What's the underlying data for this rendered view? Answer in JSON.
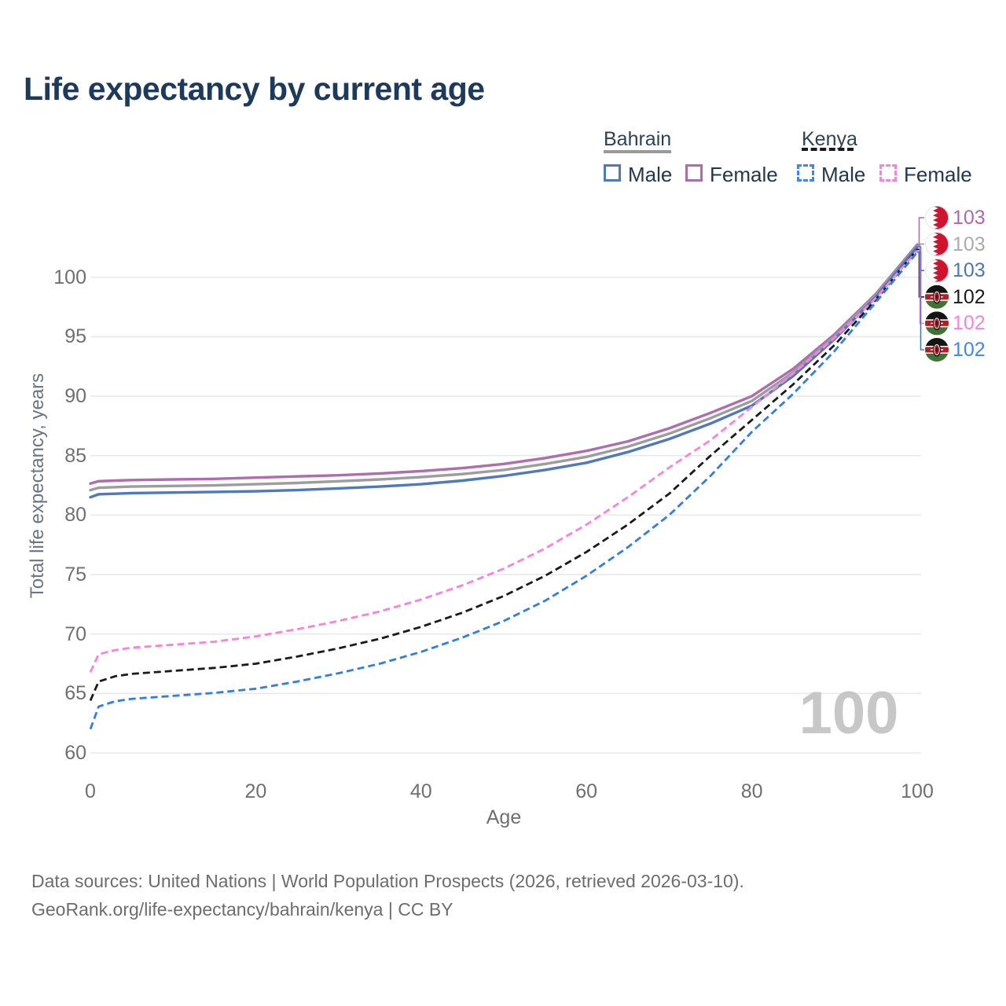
{
  "title": "Life expectancy by current age",
  "legend": {
    "groups": [
      {
        "label": "Bahrain",
        "line_style": "solid",
        "underline_color": "#999999",
        "items": [
          {
            "label": "Male",
            "color": "#4e79bb",
            "dashed": false
          },
          {
            "label": "Female",
            "color": "#b06dad",
            "dashed": false
          }
        ]
      },
      {
        "label": "Kenya",
        "line_style": "dashed",
        "underline_color": "#1a1a1a",
        "items": [
          {
            "label": "Male",
            "color": "#3f86f0",
            "dashed": true
          },
          {
            "label": "Female",
            "color": "#fb80e0",
            "dashed": true
          }
        ]
      }
    ]
  },
  "chart_data": {
    "type": "line",
    "title": "Life expectancy by current age",
    "xlabel": "Age",
    "ylabel": "Total life expectancy, years",
    "xlim": [
      0,
      100
    ],
    "ylim": [
      60,
      100
    ],
    "x_ticks": [
      0,
      20,
      40,
      60,
      80,
      100
    ],
    "y_ticks": [
      60,
      65,
      70,
      75,
      80,
      85,
      90,
      95,
      100
    ],
    "grid": "horizontal",
    "gridline_color": "#e9e9e9",
    "x": [
      0,
      1,
      3,
      5,
      10,
      15,
      20,
      25,
      30,
      35,
      40,
      45,
      50,
      55,
      60,
      65,
      70,
      75,
      80,
      85,
      90,
      95,
      100
    ],
    "series": [
      {
        "id": "bahrain-female",
        "name": "Bahrain Female",
        "country": "Bahrain",
        "sex": "Female",
        "color": "#b06cb0",
        "dashed": false,
        "flag": "bahrain",
        "end_label": "103",
        "end_label_color": "#b269ac",
        "values": [
          82.65,
          82.85,
          82.9,
          82.95,
          83.0,
          83.05,
          83.15,
          83.25,
          83.35,
          83.5,
          83.7,
          83.95,
          84.3,
          84.8,
          85.4,
          86.2,
          87.3,
          88.6,
          90.0,
          92.3,
          95.2,
          98.6,
          102.75
        ]
      },
      {
        "id": "bahrain-both",
        "name": "Bahrain Both sexes",
        "country": "Bahrain",
        "sex": "Both",
        "color": "#9d9d9d",
        "dashed": false,
        "flag": "bahrain",
        "end_label": "103",
        "end_label_color": "#ababab",
        "values": [
          82.1,
          82.3,
          82.35,
          82.4,
          82.45,
          82.5,
          82.6,
          82.7,
          82.85,
          83.0,
          83.2,
          83.45,
          83.8,
          84.3,
          84.9,
          85.75,
          86.85,
          88.15,
          89.6,
          92.0,
          95.0,
          98.5,
          102.65
        ]
      },
      {
        "id": "bahrain-male",
        "name": "Bahrain Male",
        "country": "Bahrain",
        "sex": "Male",
        "color": "#4e79bb",
        "dashed": false,
        "flag": "bahrain",
        "end_label": "103",
        "end_label_color": "#4a78b5",
        "values": [
          81.5,
          81.75,
          81.8,
          81.85,
          81.9,
          81.95,
          82.0,
          82.1,
          82.25,
          82.4,
          82.6,
          82.9,
          83.3,
          83.8,
          84.4,
          85.3,
          86.4,
          87.7,
          89.2,
          91.7,
          94.8,
          98.35,
          102.55
        ]
      },
      {
        "id": "kenya-both",
        "name": "Kenya Both sexes",
        "country": "Kenya",
        "sex": "Both",
        "color": "#1a1a1a",
        "dashed": true,
        "flag": "kenya",
        "end_label": "102",
        "end_label_color": "#1c1c1c",
        "values": [
          64.4,
          66.0,
          66.45,
          66.65,
          66.9,
          67.15,
          67.5,
          68.1,
          68.8,
          69.6,
          70.6,
          71.8,
          73.2,
          74.9,
          76.9,
          79.2,
          81.8,
          85.0,
          88.0,
          91.0,
          94.3,
          98.1,
          102.35
        ]
      },
      {
        "id": "kenya-female",
        "name": "Kenya Female",
        "country": "Kenya",
        "sex": "Female",
        "color": "#fb80e0",
        "dashed": true,
        "flag": "kenya",
        "end_label": "102",
        "end_label_color": "#fb80e0",
        "values": [
          66.8,
          68.3,
          68.65,
          68.85,
          69.1,
          69.35,
          69.8,
          70.4,
          71.1,
          71.9,
          72.9,
          74.1,
          75.5,
          77.2,
          79.2,
          81.5,
          84.0,
          86.3,
          89.1,
          91.9,
          94.9,
          98.25,
          102.25
        ]
      },
      {
        "id": "kenya-male",
        "name": "Kenya Male",
        "country": "Kenya",
        "sex": "Male",
        "color": "#2f7ee8",
        "dashed": true,
        "flag": "kenya",
        "end_label": "102",
        "end_label_color": "#3f86f0",
        "values": [
          62.0,
          63.9,
          64.35,
          64.55,
          64.8,
          65.05,
          65.4,
          66.0,
          66.7,
          67.5,
          68.5,
          69.7,
          71.1,
          72.8,
          74.9,
          77.3,
          80.0,
          83.3,
          87.0,
          90.2,
          93.8,
          97.9,
          102.1
        ]
      }
    ],
    "flag_colors": {
      "bahrain_red": "#cf1430",
      "kenya_black": "#141414",
      "kenya_red": "#b01f28",
      "kenya_green": "#3f7436"
    }
  },
  "age_indicator": "100",
  "footer": {
    "line1": "Data sources: United Nations | World Population Prospects (2026, retrieved 2026-03-10).",
    "line2": "GeoRank.org/life-expectancy/bahrain/kenya | CC BY"
  }
}
